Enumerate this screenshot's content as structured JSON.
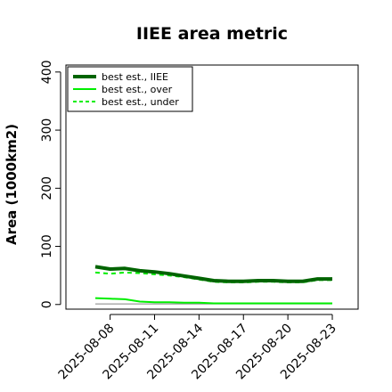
{
  "chart_data": {
    "type": "line",
    "title": "IIEE area metric",
    "ylabel": "Area (1000km2)",
    "xlabel": "",
    "ylim": [
      -8,
      412
    ],
    "yticks": [
      0,
      100,
      200,
      300,
      400
    ],
    "x": [
      "2025-08-07",
      "2025-08-08",
      "2025-08-09",
      "2025-08-10",
      "2025-08-11",
      "2025-08-12",
      "2025-08-13",
      "2025-08-14",
      "2025-08-15",
      "2025-08-16",
      "2025-08-17",
      "2025-08-18",
      "2025-08-19",
      "2025-08-20",
      "2025-08-21",
      "2025-08-22",
      "2025-08-23"
    ],
    "xticks": [
      "2025-08-08",
      "2025-08-11",
      "2025-08-14",
      "2025-08-17",
      "2025-08-20",
      "2025-08-23"
    ],
    "grid": false,
    "legend_position": "top-left",
    "series": [
      {
        "name": "best est., IIEE",
        "color": "#006400",
        "style": "solid-thick",
        "values": [
          65,
          61,
          62,
          58,
          56,
          53,
          49,
          45,
          41,
          40,
          40,
          41,
          41,
          40,
          40,
          44,
          44
        ]
      },
      {
        "name": "best est., over",
        "color": "#00ee00",
        "style": "solid",
        "values": [
          11,
          10,
          9,
          5,
          4,
          4,
          3,
          3,
          2,
          2,
          2,
          2,
          2,
          2,
          2,
          2,
          2
        ]
      },
      {
        "name": "best est., under",
        "color": "#00ee00",
        "style": "dashed",
        "values": [
          55,
          53,
          55,
          54,
          52,
          50,
          47,
          43,
          39,
          38,
          38,
          39,
          39,
          38,
          38,
          42,
          42
        ]
      },
      {
        "name": "",
        "color": "#808080",
        "style": "solid-thin",
        "values": [
          1,
          1,
          1,
          1,
          1,
          1,
          1,
          1,
          1,
          1,
          1,
          1,
          1,
          1,
          1,
          1,
          1
        ]
      }
    ]
  }
}
